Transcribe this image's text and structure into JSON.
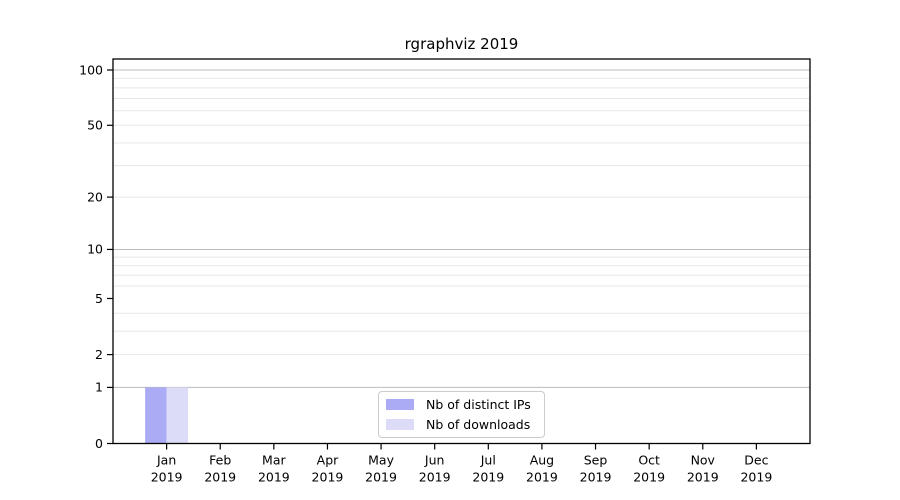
{
  "title": "rgraphviz 2019",
  "legend": {
    "items": [
      {
        "label": "Nb of distinct IPs",
        "color": "#aaaaf5"
      },
      {
        "label": "Nb of downloads",
        "color": "#dcdcf8"
      }
    ],
    "position": "lower center"
  },
  "chart_data": {
    "type": "bar",
    "title": "rgraphviz 2019",
    "x_months": [
      "Jan",
      "Feb",
      "Mar",
      "Apr",
      "May",
      "Jun",
      "Jul",
      "Aug",
      "Sep",
      "Oct",
      "Nov",
      "Dec"
    ],
    "x_year": "2019",
    "series": [
      {
        "name": "Nb of distinct IPs",
        "color": "#aaaaf5",
        "values": [
          1,
          0,
          0,
          0,
          0,
          0,
          0,
          0,
          0,
          0,
          0,
          0
        ]
      },
      {
        "name": "Nb of downloads",
        "color": "#dcdcf8",
        "values": [
          1,
          0,
          0,
          0,
          0,
          0,
          0,
          0,
          0,
          0,
          0,
          0
        ]
      }
    ],
    "yscale": "log1p",
    "ylim": [
      0,
      114.7
    ],
    "y_tick_values": [
      0,
      1,
      2,
      5,
      10,
      20,
      50,
      100
    ],
    "y_tick_labels": [
      "0",
      "1",
      "2",
      "5",
      "10",
      "20",
      "50",
      "100"
    ],
    "y_major_gridlines": [
      1,
      10,
      100
    ],
    "y_minor_gridlines": [
      2,
      3,
      4,
      6,
      7,
      8,
      9,
      20,
      30,
      40,
      50,
      60,
      70,
      80,
      90
    ],
    "grid": true,
    "legend_position": "lower center"
  },
  "colors": {
    "axis": "#000000",
    "text": "#000000",
    "major_grid": "#bbbbbb",
    "minor_grid": "#e8e8e8",
    "legend_border": "#cccccc",
    "background": "#ffffff"
  }
}
